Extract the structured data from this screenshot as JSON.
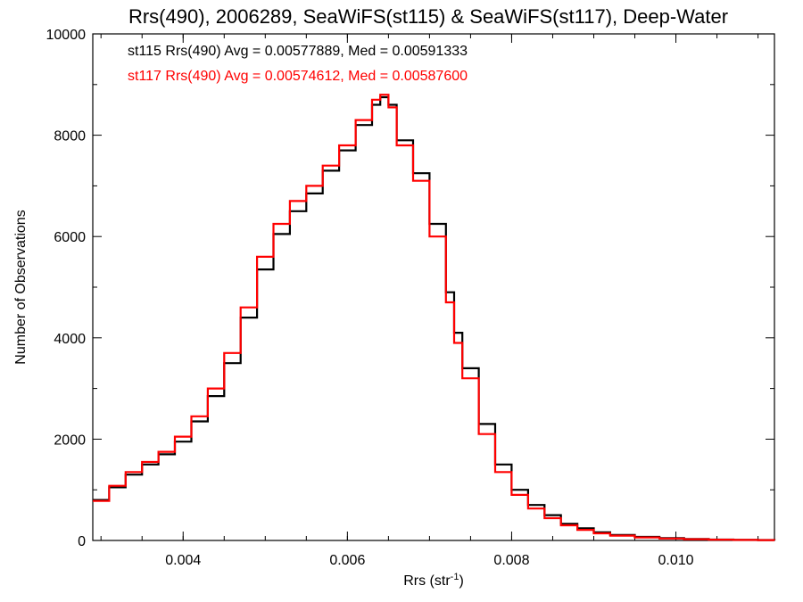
{
  "chart_data": {
    "type": "line",
    "title": "Rrs(490), 2006289, SeaWiFS(st115) & SeaWiFS(st117), Deep-Water",
    "xlabel": "Rrs (str",
    "xlabel_sup": "-1",
    "xlabel_close": ")",
    "ylabel": "Number of Observations",
    "xlim": [
      0.0029,
      0.0112
    ],
    "ylim": [
      0,
      10000
    ],
    "xticks": [
      {
        "value": 0.004,
        "label": "0.004"
      },
      {
        "value": 0.006,
        "label": "0.006"
      },
      {
        "value": 0.008,
        "label": "0.008"
      },
      {
        "value": 0.01,
        "label": "0.010"
      }
    ],
    "yticks": [
      {
        "value": 0,
        "label": "0"
      },
      {
        "value": 2000,
        "label": "2000"
      },
      {
        "value": 4000,
        "label": "4000"
      },
      {
        "value": 6000,
        "label": "6000"
      },
      {
        "value": 8000,
        "label": "8000"
      },
      {
        "value": 10000,
        "label": "10000"
      }
    ],
    "annotations": [
      {
        "text": "st115 Rrs(490) Avg = 0.00577889, Med = 0.00591333",
        "color": "#000000"
      },
      {
        "text": "st117 Rrs(490) Avg = 0.00574612, Med = 0.00587600",
        "color": "#ff0000"
      }
    ],
    "series": [
      {
        "color": "#000000",
        "x": [
          0.0029,
          0.0031,
          0.0033,
          0.0035,
          0.0037,
          0.0039,
          0.0041,
          0.0043,
          0.0045,
          0.0047,
          0.0049,
          0.0051,
          0.0053,
          0.0055,
          0.0057,
          0.0059,
          0.0061,
          0.0063,
          0.0064,
          0.0065,
          0.0066,
          0.0068,
          0.007,
          0.0072,
          0.0073,
          0.0074,
          0.0076,
          0.0078,
          0.008,
          0.0082,
          0.0084,
          0.0086,
          0.0088,
          0.009,
          0.0092,
          0.0095,
          0.0098,
          0.0101,
          0.0104,
          0.0107,
          0.011,
          0.0112
        ],
        "y": [
          800,
          1050,
          1300,
          1500,
          1700,
          1950,
          2350,
          2850,
          3500,
          4400,
          5350,
          6050,
          6500,
          6850,
          7300,
          7700,
          8200,
          8600,
          8750,
          8600,
          7900,
          7250,
          6250,
          4900,
          4100,
          3400,
          2300,
          1500,
          1000,
          700,
          500,
          330,
          240,
          160,
          110,
          70,
          45,
          28,
          18,
          12,
          8,
          5
        ]
      },
      {
        "color": "#ff0000",
        "x": [
          0.0029,
          0.0031,
          0.0033,
          0.0035,
          0.0037,
          0.0039,
          0.0041,
          0.0043,
          0.0045,
          0.0047,
          0.0049,
          0.0051,
          0.0053,
          0.0055,
          0.0057,
          0.0059,
          0.0061,
          0.0063,
          0.0064,
          0.0065,
          0.0066,
          0.0068,
          0.007,
          0.0072,
          0.0073,
          0.0074,
          0.0076,
          0.0078,
          0.008,
          0.0082,
          0.0084,
          0.0086,
          0.0088,
          0.009,
          0.0092,
          0.0095,
          0.0098,
          0.0101,
          0.0104,
          0.0107,
          0.011,
          0.0112
        ],
        "y": [
          780,
          1080,
          1350,
          1550,
          1750,
          2050,
          2450,
          3000,
          3700,
          4600,
          5600,
          6250,
          6700,
          7000,
          7400,
          7800,
          8300,
          8700,
          8800,
          8550,
          7800,
          7100,
          6000,
          4700,
          3900,
          3200,
          2100,
          1350,
          900,
          630,
          440,
          300,
          210,
          140,
          95,
          60,
          38,
          24,
          15,
          10,
          7,
          4
        ]
      }
    ]
  }
}
